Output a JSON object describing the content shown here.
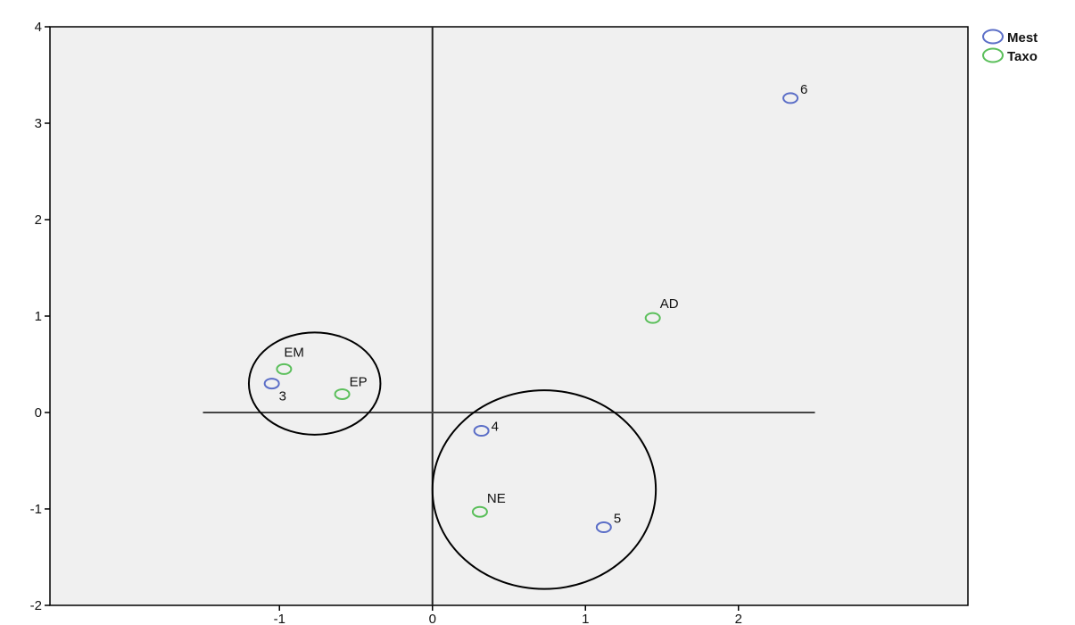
{
  "chart_data": {
    "type": "scatter",
    "title": "",
    "xlabel": "",
    "ylabel": "",
    "xlim": [
      -2.5,
      3.5
    ],
    "ylim": [
      -2,
      4
    ],
    "x_ticks": [
      -1,
      0,
      1,
      2
    ],
    "y_ticks": [
      -2,
      -1,
      0,
      1,
      2,
      3,
      4
    ],
    "x_tick_labels": [
      "-1",
      "0",
      "1",
      "2"
    ],
    "y_tick_labels": [
      "-2",
      "-1",
      "0",
      "1",
      "2",
      "3",
      "4"
    ],
    "grid": false,
    "legend_position": "top-right, outside plot",
    "plot_background": "#f0f0f0",
    "series": [
      {
        "name": "Mest",
        "color": "#5b6ec7",
        "marker": "open-circle",
        "points": [
          {
            "label": "3",
            "x": -1.05,
            "y": 0.3
          },
          {
            "label": "4",
            "x": 0.32,
            "y": -0.19
          },
          {
            "label": "5",
            "x": 1.12,
            "y": -1.19
          },
          {
            "label": "6",
            "x": 2.34,
            "y": 3.26
          }
        ]
      },
      {
        "name": "Taxo",
        "color": "#5bbf5b",
        "marker": "open-circle",
        "points": [
          {
            "label": "EM",
            "x": -0.97,
            "y": 0.45
          },
          {
            "label": "EP",
            "x": -0.59,
            "y": 0.19
          },
          {
            "label": "NE",
            "x": 0.31,
            "y": -1.03
          },
          {
            "label": "AD",
            "x": 1.44,
            "y": 0.98
          }
        ]
      }
    ],
    "reference_lines": [
      {
        "orientation": "vertical",
        "x": 0,
        "y_from": -2,
        "y_to": 4
      },
      {
        "orientation": "horizontal",
        "y": 0,
        "x_from": -1.5,
        "x_to": 2.5
      }
    ],
    "cluster_circles": [
      {
        "cx": -0.77,
        "cy": 0.3,
        "rx": 0.43,
        "ry": 0.53
      },
      {
        "cx": 0.73,
        "cy": -0.8,
        "rx": 0.73,
        "ry": 1.03
      }
    ]
  }
}
